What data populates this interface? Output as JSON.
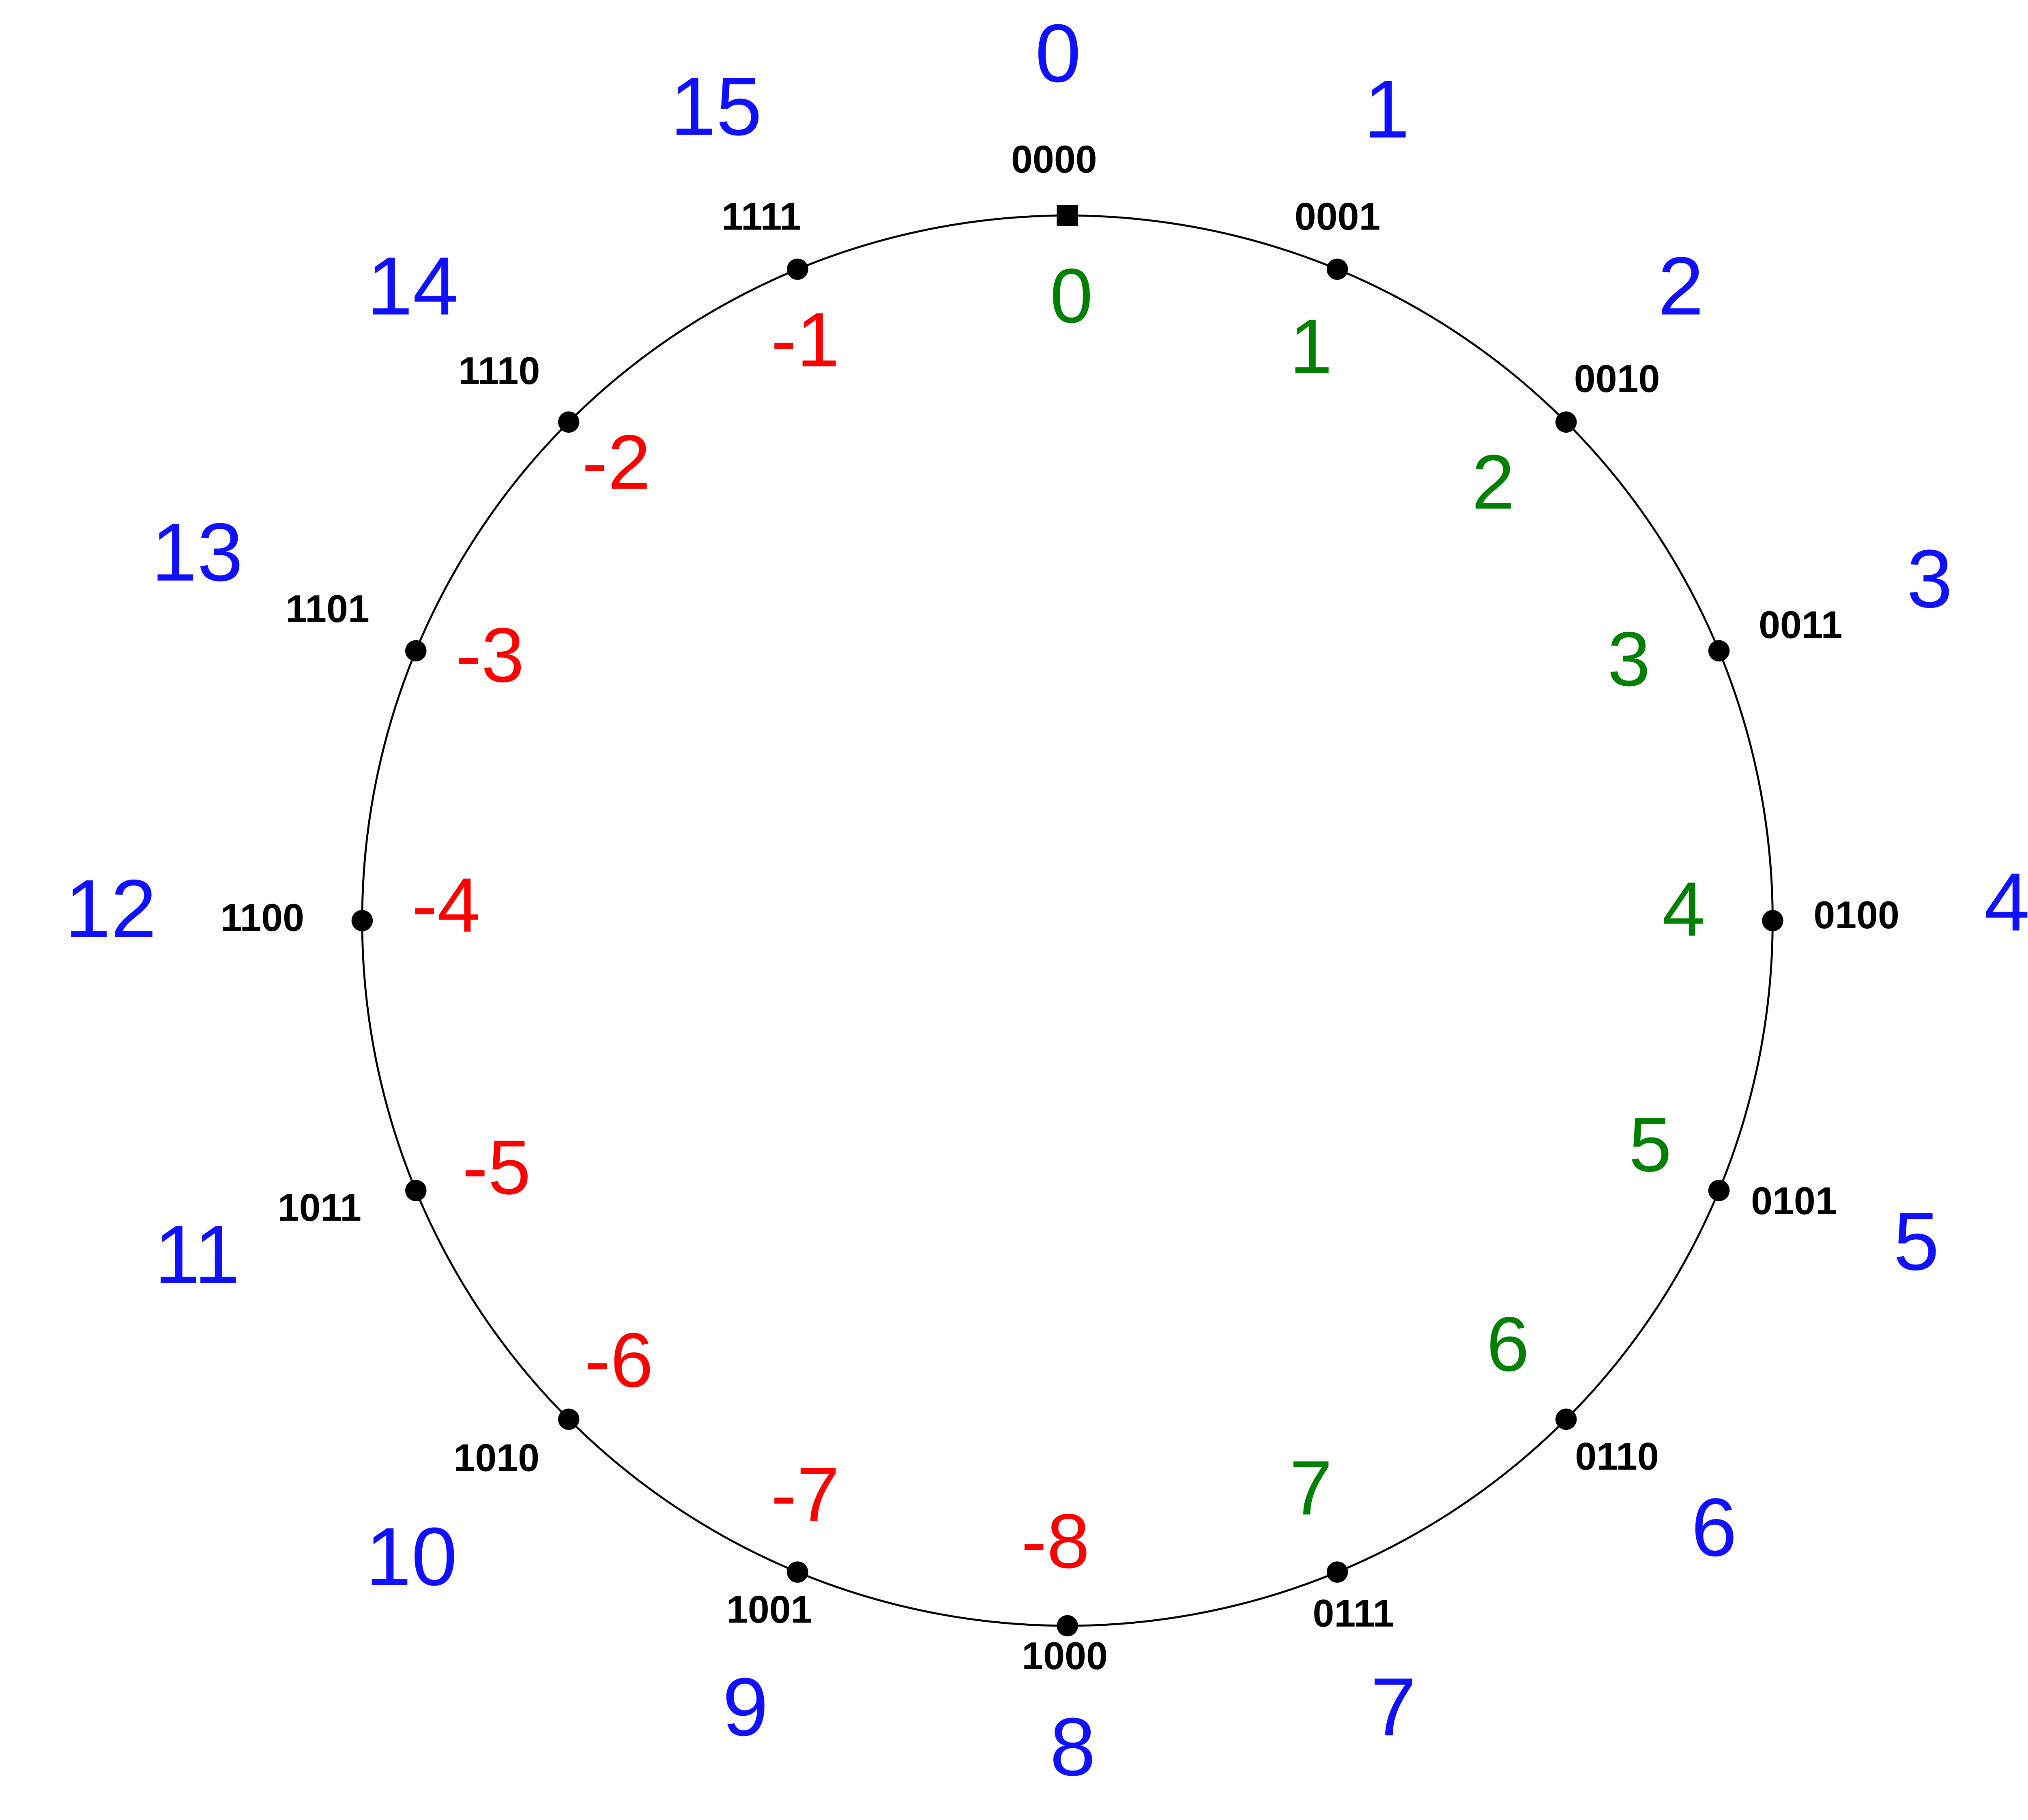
{
  "nodes": [
    {
      "binary": "0000",
      "unsigned": "0",
      "signed": "0"
    },
    {
      "binary": "0001",
      "unsigned": "1",
      "signed": "1"
    },
    {
      "binary": "0010",
      "unsigned": "2",
      "signed": "2"
    },
    {
      "binary": "0011",
      "unsigned": "3",
      "signed": "3"
    },
    {
      "binary": "0100",
      "unsigned": "4",
      "signed": "4"
    },
    {
      "binary": "0101",
      "unsigned": "5",
      "signed": "5"
    },
    {
      "binary": "0110",
      "unsigned": "6",
      "signed": "6"
    },
    {
      "binary": "0111",
      "unsigned": "7",
      "signed": "7"
    },
    {
      "binary": "1000",
      "unsigned": "8",
      "signed": "-8"
    },
    {
      "binary": "1001",
      "unsigned": "9",
      "signed": "-7"
    },
    {
      "binary": "1010",
      "unsigned": "10",
      "signed": "-6"
    },
    {
      "binary": "1011",
      "unsigned": "11",
      "signed": "-5"
    },
    {
      "binary": "1100",
      "unsigned": "12",
      "signed": "-4"
    },
    {
      "binary": "1101",
      "unsigned": "13",
      "signed": "-3"
    },
    {
      "binary": "1110",
      "unsigned": "14",
      "signed": "-2"
    },
    {
      "binary": "1111",
      "unsigned": "15",
      "signed": "-1"
    }
  ]
}
